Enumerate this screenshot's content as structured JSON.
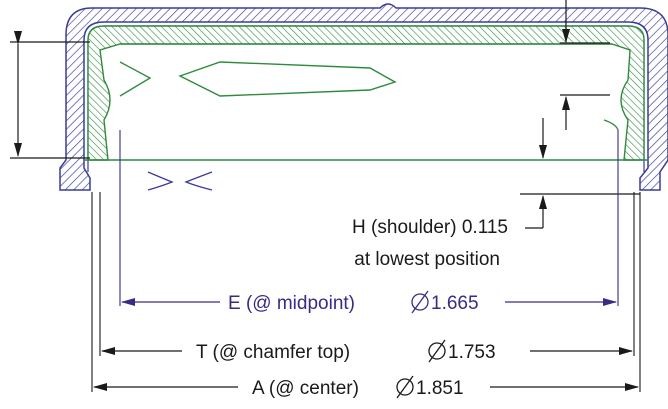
{
  "labels": {
    "h_line1": "H (shoulder) 0.115",
    "h_line2": "at lowest position",
    "e_name": "E (@ midpoint)",
    "e_value": "1.665",
    "t_name": "T (@ chamfer top)",
    "t_value": "1.753",
    "a_name": "A (@ center)",
    "a_value": "1.851"
  },
  "icons": {
    "diameter": "diameter-symbol-icon"
  },
  "colors": {
    "outer_shell": "#3b3b9a",
    "liner": "#2e8b3e",
    "dimension_e": "#3a2a86",
    "dimension": "#1a1a1a"
  }
}
